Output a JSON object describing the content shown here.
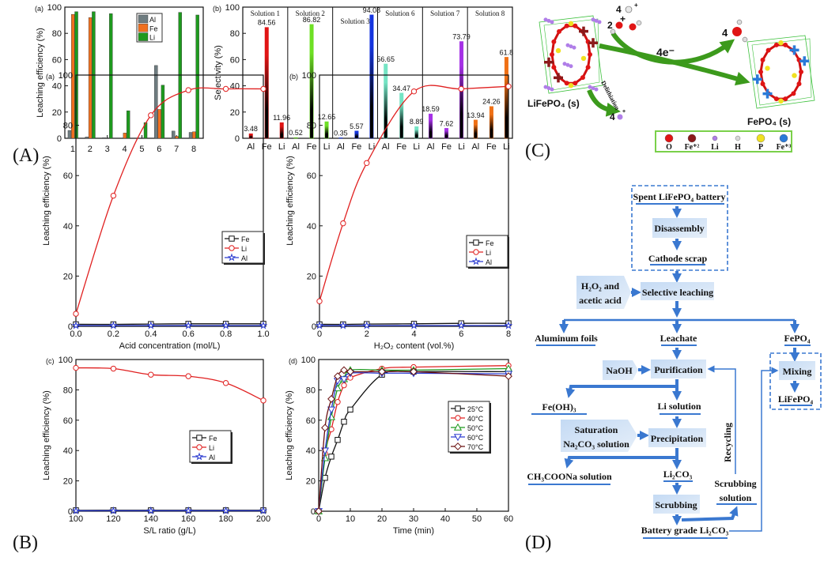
{
  "figure_labels": {
    "A": "(A)",
    "B": "(B)",
    "C": "(C)",
    "D": "(D)"
  },
  "chart_data": [
    {
      "id": "Aa",
      "panel_label": "(a)",
      "type": "bar",
      "categories": [
        "1",
        "2",
        "3",
        "4",
        "5",
        "6",
        "7",
        "8"
      ],
      "xlabel": "",
      "ylabel": "Leaching efficiency (%)",
      "ylim": [
        0,
        100
      ],
      "yticks": [
        "0",
        "20",
        "40",
        "60",
        "80",
        "100"
      ],
      "legend": "top-center",
      "series": [
        {
          "name": "Al",
          "color": "#6e7c80",
          "values": [
            6,
            1,
            0.5,
            0,
            0,
            55.5,
            5.5,
            4.5
          ]
        },
        {
          "name": "Fe",
          "color": "#f07020",
          "values": [
            94.5,
            92,
            0,
            4,
            0,
            22,
            1.5,
            5
          ]
        },
        {
          "name": "Li",
          "color": "#1e9a1e",
          "values": [
            96.5,
            96.5,
            95,
            21,
            12,
            40.5,
            96,
            94
          ]
        }
      ]
    },
    {
      "id": "Ab",
      "panel_label": "(b)",
      "type": "bar",
      "xlabel": "",
      "ylabel": "Selectivity  (%)",
      "ylim": [
        0,
        100
      ],
      "yticks": [
        "0",
        "20",
        "40",
        "60",
        "80",
        "100"
      ],
      "groups": [
        {
          "name": "Solution 1",
          "color": "#e01515",
          "categories": [
            "Al",
            "Fe",
            "Li"
          ],
          "values": [
            3.48,
            84.56,
            11.96
          ],
          "labels": [
            "3.48",
            "84.56",
            "11.96"
          ]
        },
        {
          "name": "Solution 2",
          "color": "#6ee024",
          "categories": [
            "Al",
            "Fe",
            "Li"
          ],
          "values": [
            0.52,
            86.82,
            12.65
          ],
          "labels": [
            "0.52",
            "86.82",
            "12.65"
          ]
        },
        {
          "name": "Solution 3",
          "color": "#1535e0",
          "categories": [
            "Al",
            "Fe",
            "Li"
          ],
          "values": [
            0.35,
            5.57,
            94.08
          ],
          "labels": [
            "0.35",
            "5.57",
            "94.08"
          ]
        },
        {
          "name": "Solution 6",
          "color": "#74e4c4",
          "categories": [
            "Al",
            "Fe",
            "Li"
          ],
          "values": [
            56.65,
            34.47,
            8.89
          ],
          "labels": [
            "56.65",
            "34.47",
            "8.89"
          ]
        },
        {
          "name": "Solution 7",
          "color": "#a530e6",
          "categories": [
            "Al",
            "Fe",
            "Li"
          ],
          "values": [
            18.59,
            7.62,
            73.79
          ],
          "labels": [
            "18.59",
            "7.62",
            "73.79"
          ]
        },
        {
          "name": "Solution 8",
          "color": "#f07015",
          "categories": [
            "Al",
            "Fe",
            "Li"
          ],
          "values": [
            13.94,
            24.26,
            61.8
          ],
          "labels": [
            "13.94",
            "24.26",
            "61.8"
          ]
        }
      ]
    },
    {
      "id": "Ba",
      "panel_label": "(a)",
      "type": "line",
      "xlabel": "Acid concentration (mol/L)",
      "ylabel": "Leaching efficiency (%)",
      "xlim": [
        0,
        1
      ],
      "xticks": [
        "0.0",
        "0.2",
        "0.4",
        "0.6",
        "0.8",
        "1.0"
      ],
      "ylim": [
        0,
        100
      ],
      "yticks": [
        "0",
        "20",
        "40",
        "60",
        "80",
        "100"
      ],
      "legend": "right-middle",
      "series": [
        {
          "name": "Fe",
          "color": "#111111",
          "marker": "square",
          "x": [
            0,
            0.2,
            0.4,
            0.6,
            0.8,
            1.0
          ],
          "y": [
            0.8,
            0.8,
            0.9,
            1,
            1,
            1
          ]
        },
        {
          "name": "Li",
          "color": "#e02020",
          "marker": "circle",
          "x": [
            0,
            0.2,
            0.4,
            0.6,
            0.8,
            1.0
          ],
          "y": [
            5,
            52,
            84,
            94,
            94.5,
            94.5
          ]
        },
        {
          "name": "Al",
          "color": "#2a3ad0",
          "marker": "star",
          "x": [
            0,
            0.2,
            0.4,
            0.6,
            0.8,
            1.0
          ],
          "y": [
            0.3,
            0.3,
            0.3,
            0.3,
            0.3,
            0.3
          ]
        }
      ]
    },
    {
      "id": "Bb",
      "panel_label": "(b)",
      "type": "line",
      "xlabel": "H₂O₂ content (vol.%)",
      "ylabel": "Leaching efficiency (%)",
      "xlim": [
        0,
        8
      ],
      "xticks": [
        "0",
        "2",
        "4",
        "6",
        "8"
      ],
      "ylim": [
        0,
        100
      ],
      "yticks": [
        "0",
        "20",
        "40",
        "60",
        "80",
        "100"
      ],
      "legend": "right-middle",
      "series": [
        {
          "name": "Fe",
          "color": "#111111",
          "marker": "square",
          "x": [
            0,
            1,
            2,
            4,
            6,
            8
          ],
          "y": [
            0.8,
            0.8,
            0.9,
            1,
            1.2,
            1.2
          ]
        },
        {
          "name": "Li",
          "color": "#e02020",
          "marker": "circle",
          "x": [
            0,
            1,
            2,
            4,
            6,
            8
          ],
          "y": [
            10,
            41,
            65,
            93.5,
            94.5,
            95.5
          ]
        },
        {
          "name": "Al",
          "color": "#2a3ad0",
          "marker": "star",
          "x": [
            0,
            1,
            2,
            4,
            6,
            8
          ],
          "y": [
            0.3,
            0.3,
            0.3,
            0.3,
            0.3,
            0.3
          ]
        }
      ]
    },
    {
      "id": "Bc",
      "panel_label": "(c)",
      "type": "line",
      "xlabel": "S/L ratio (g/L)",
      "ylabel": "Leaching efficiency (%)",
      "xlim": [
        100,
        200
      ],
      "xticks": [
        "100",
        "120",
        "140",
        "160",
        "180",
        "200"
      ],
      "ylim": [
        0,
        100
      ],
      "yticks": [
        "0",
        "20",
        "40",
        "60",
        "80",
        "100"
      ],
      "legend": "center",
      "series": [
        {
          "name": "Fe",
          "color": "#111111",
          "marker": "square",
          "x": [
            100,
            120,
            140,
            160,
            180,
            200
          ],
          "y": [
            0.6,
            0.6,
            0.6,
            0.6,
            0.6,
            0.6
          ]
        },
        {
          "name": "Li",
          "color": "#e02020",
          "marker": "circle",
          "x": [
            100,
            120,
            140,
            160,
            180,
            200
          ],
          "y": [
            94.5,
            94,
            90,
            89,
            84.5,
            73
          ]
        },
        {
          "name": "Al",
          "color": "#2a3ad0",
          "marker": "star",
          "x": [
            100,
            120,
            140,
            160,
            180,
            200
          ],
          "y": [
            0.3,
            0.3,
            0.3,
            0.3,
            0.3,
            0.3
          ]
        }
      ]
    },
    {
      "id": "Bd",
      "panel_label": "(d)",
      "type": "line",
      "xlabel": "Time (min)",
      "ylabel": "Leaching efficiency (%)",
      "xlim": [
        0,
        60
      ],
      "xticks": [
        "0",
        "10",
        "20",
        "30",
        "40",
        "50",
        "60"
      ],
      "ylim": [
        0,
        100
      ],
      "yticks": [
        "0",
        "20",
        "40",
        "60",
        "80",
        "100"
      ],
      "legend": "right-middle",
      "series": [
        {
          "name": "25°C",
          "color": "#111111",
          "marker": "square",
          "x": [
            0,
            2,
            4,
            6,
            8,
            10,
            20,
            30,
            60
          ],
          "y": [
            0,
            22,
            36,
            47,
            59,
            67,
            90,
            92,
            92
          ]
        },
        {
          "name": "40°C",
          "color": "#e02020",
          "marker": "circle",
          "x": [
            0,
            2,
            4,
            6,
            8,
            10,
            20,
            30,
            60
          ],
          "y": [
            0,
            38,
            54,
            72,
            83,
            88,
            94,
            95,
            96
          ]
        },
        {
          "name": "50°C",
          "color": "#1e9a1e",
          "marker": "triangle-up",
          "x": [
            0,
            2,
            4,
            6,
            8,
            10,
            20,
            30,
            60
          ],
          "y": [
            0,
            35,
            62,
            81,
            87,
            93,
            93,
            93,
            94
          ]
        },
        {
          "name": "60°C",
          "color": "#2a3ad0",
          "marker": "triangle-down",
          "x": [
            0,
            2,
            4,
            6,
            8,
            10,
            20,
            30,
            60
          ],
          "y": [
            0,
            40,
            67,
            86,
            87,
            91,
            91,
            91,
            90.5
          ]
        },
        {
          "name": "70°C",
          "color": "#6a1010",
          "marker": "diamond",
          "x": [
            0,
            2,
            4,
            6,
            8,
            10,
            20,
            30,
            60
          ],
          "y": [
            0,
            55,
            74,
            89,
            93,
            92,
            92,
            92,
            89
          ]
        }
      ]
    }
  ],
  "mechanism": {
    "h_coef": "4",
    "h_charge": "+",
    "plus": "+",
    "h2o2_coef": "2",
    "electrons": "4e⁻",
    "water_coef": "4",
    "delithiation": "Delithiation",
    "li_coef": "4",
    "li_charge": "+",
    "reactant": "LiFePO₄ (s)",
    "product": "FePO₄ (s)",
    "legend": [
      {
        "label": "O",
        "color": "#e01515"
      },
      {
        "label": "Fe⁺²",
        "color": "#8b1a1a"
      },
      {
        "label": "Li",
        "color": "#b07ee8"
      },
      {
        "label": "H",
        "color": "#d8d8d8"
      },
      {
        "label": "P",
        "color": "#f0e020"
      },
      {
        "label": "Fe⁺³",
        "color": "#2a7ad8"
      }
    ]
  },
  "flowchart": {
    "spent": "Spent  LiFePO₄ battery",
    "disassembly": "Disassembly",
    "cathode": "Cathode scrap",
    "reagent1": [
      "H₂O₂ and",
      "acetic acid"
    ],
    "leaching": "Selective leaching",
    "aluminum": "Aluminum foils",
    "leachate": "Leachate",
    "fepo4": "FePO₄",
    "naoh": "NaOH",
    "purification": "Purification",
    "mixing": "Mixing",
    "lifepo4": "LiFePO₄",
    "feoh3": "Fe(OH)₃",
    "li_solution": "Li solution",
    "reagent2": [
      "Saturation",
      "Na₂CO₃ solution"
    ],
    "precipitation": "Precipitation",
    "ch3coona": "CH₃COONa solution",
    "li2co3": "Li₂CO₃",
    "scrubbing": "Scrubbing",
    "scrub_solution": [
      "Scrubbing",
      "solution"
    ],
    "battery_grade": "Battery grade Li₂CO₃",
    "recycling": "Recycling"
  }
}
